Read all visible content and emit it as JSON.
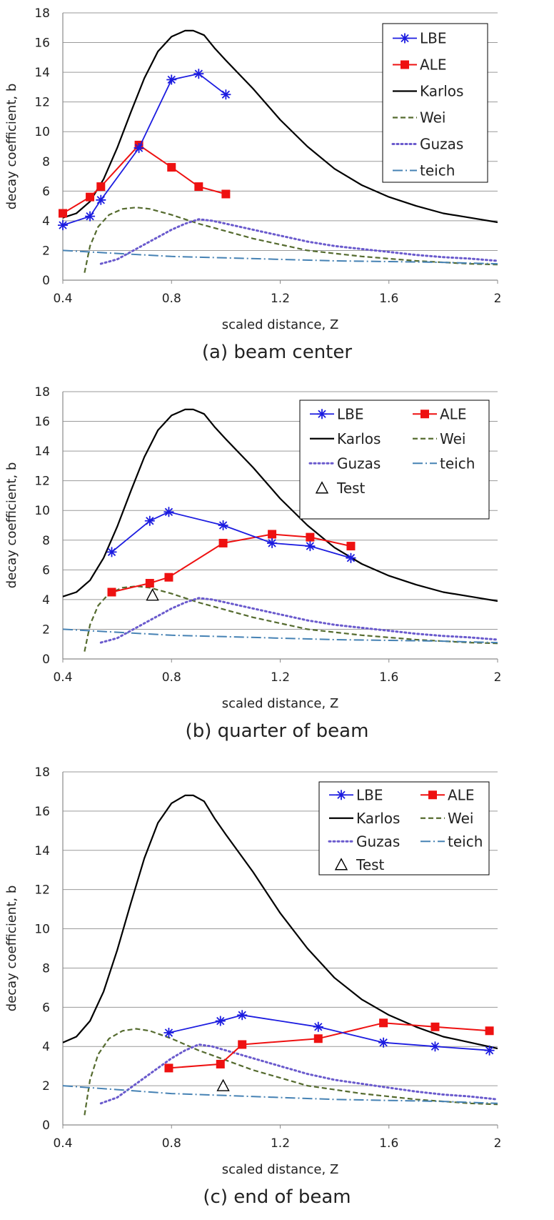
{
  "captions": [
    "(a) beam center",
    "(b) quarter of beam",
    "(c) end of beam"
  ],
  "colors": {
    "lbe": "#1c1ce0",
    "ale": "#ee1111",
    "karlos": "#000000",
    "wei": "#556b2f",
    "guzas": "#6a5acd",
    "teich": "#4682b4",
    "test": "#000000"
  },
  "chart_data": [
    {
      "type": "line",
      "title": "(a) beam center",
      "xlabel": "scaled distance, Z",
      "ylabel": "decay coefficient, b",
      "xlim": [
        0.4,
        2.0
      ],
      "ylim": [
        0,
        18
      ],
      "xticks": [
        0.4,
        0.8,
        1.2,
        1.6,
        2.0
      ],
      "xtick_labels": [
        "0.4",
        "0.8",
        "1.2",
        "1.6",
        "2"
      ],
      "yticks": [
        0,
        2,
        4,
        6,
        8,
        10,
        12,
        14,
        16,
        18
      ],
      "ytick_labels": [
        "0",
        "2",
        "4",
        "6",
        "8",
        "10",
        "12",
        "14",
        "16",
        "18"
      ],
      "legend": {
        "position": "top-right",
        "columns": 1,
        "entries": [
          "LBE",
          "ALE",
          "Karlos",
          "Wei",
          "Guzas",
          "teich"
        ]
      },
      "series": [
        {
          "name": "LBE",
          "style": "lbe",
          "x": [
            0.4,
            0.5,
            0.54,
            0.68,
            0.8,
            0.9,
            1.0
          ],
          "y": [
            3.7,
            4.3,
            5.4,
            8.9,
            13.5,
            13.9,
            12.5
          ]
        },
        {
          "name": "ALE",
          "style": "ale",
          "x": [
            0.4,
            0.5,
            0.54,
            0.68,
            0.8,
            0.9,
            1.0
          ],
          "y": [
            4.5,
            5.6,
            6.3,
            9.1,
            7.6,
            6.3,
            5.8
          ]
        },
        {
          "name": "Karlos",
          "style": "karlos",
          "x": [
            0.4,
            0.45,
            0.5,
            0.55,
            0.6,
            0.65,
            0.7,
            0.75,
            0.8,
            0.85,
            0.88,
            0.92,
            0.96,
            1.0,
            1.1,
            1.2,
            1.3,
            1.4,
            1.5,
            1.6,
            1.7,
            1.8,
            1.9,
            2.0
          ],
          "y": [
            4.2,
            4.5,
            5.3,
            6.8,
            8.9,
            11.3,
            13.6,
            15.4,
            16.4,
            16.8,
            16.8,
            16.5,
            15.6,
            14.8,
            12.9,
            10.8,
            9.0,
            7.5,
            6.4,
            5.6,
            5.0,
            4.5,
            4.2,
            3.9
          ]
        },
        {
          "name": "Wei",
          "style": "wei",
          "x": [
            0.48,
            0.5,
            0.53,
            0.57,
            0.62,
            0.67,
            0.72,
            0.8,
            0.9,
            1.0,
            1.1,
            1.2,
            1.3,
            1.4,
            1.5,
            1.6,
            1.7,
            1.8,
            1.9,
            2.0
          ],
          "y": [
            0.5,
            2.3,
            3.6,
            4.4,
            4.8,
            4.9,
            4.8,
            4.4,
            3.8,
            3.3,
            2.8,
            2.4,
            2.0,
            1.8,
            1.6,
            1.45,
            1.3,
            1.2,
            1.1,
            1.05
          ]
        },
        {
          "name": "Guzas",
          "style": "guzas",
          "x": [
            0.54,
            0.6,
            0.7,
            0.8,
            0.85,
            0.9,
            0.95,
            1.0,
            1.1,
            1.2,
            1.3,
            1.4,
            1.5,
            1.6,
            1.7,
            1.8,
            1.9,
            2.0
          ],
          "y": [
            1.1,
            1.4,
            2.4,
            3.4,
            3.8,
            4.1,
            4.0,
            3.8,
            3.4,
            3.0,
            2.6,
            2.3,
            2.1,
            1.9,
            1.7,
            1.55,
            1.45,
            1.3
          ]
        },
        {
          "name": "teich",
          "style": "teich",
          "x": [
            0.4,
            0.6,
            0.8,
            1.0,
            1.2,
            1.4,
            1.6,
            1.8,
            2.0
          ],
          "y": [
            2.0,
            1.8,
            1.6,
            1.5,
            1.4,
            1.3,
            1.25,
            1.2,
            1.1
          ]
        }
      ]
    },
    {
      "type": "line",
      "title": "(b) quarter of beam",
      "xlabel": "scaled distance, Z",
      "ylabel": "decay coefficient, b",
      "xlim": [
        0.4,
        2.0
      ],
      "ylim": [
        0,
        18
      ],
      "xticks": [
        0.4,
        0.8,
        1.2,
        1.6,
        2.0
      ],
      "xtick_labels": [
        "0.4",
        "0.8",
        "1.2",
        "1.6",
        "2"
      ],
      "yticks": [
        0,
        2,
        4,
        6,
        8,
        10,
        12,
        14,
        16,
        18
      ],
      "ytick_labels": [
        "0",
        "2",
        "4",
        "6",
        "8",
        "10",
        "12",
        "14",
        "16",
        "18"
      ],
      "legend": {
        "position": "top-right",
        "columns": 2,
        "entries": [
          "LBE",
          "ALE",
          "Karlos",
          "Wei",
          "Guzas",
          "teich",
          "Test"
        ]
      },
      "series": [
        {
          "name": "LBE",
          "style": "lbe",
          "x": [
            0.58,
            0.72,
            0.79,
            0.99,
            1.17,
            1.31,
            1.46
          ],
          "y": [
            7.2,
            9.3,
            9.9,
            9.0,
            7.8,
            7.6,
            6.8
          ]
        },
        {
          "name": "ALE",
          "style": "ale",
          "x": [
            0.58,
            0.72,
            0.79,
            0.99,
            1.17,
            1.31,
            1.46
          ],
          "y": [
            4.5,
            5.1,
            5.5,
            7.8,
            8.4,
            8.2,
            7.6
          ]
        },
        {
          "name": "Karlos",
          "style": "karlos",
          "x": [
            0.4,
            0.45,
            0.5,
            0.55,
            0.6,
            0.65,
            0.7,
            0.75,
            0.8,
            0.85,
            0.88,
            0.92,
            0.96,
            1.0,
            1.1,
            1.2,
            1.3,
            1.4,
            1.5,
            1.6,
            1.7,
            1.8,
            1.9,
            2.0
          ],
          "y": [
            4.2,
            4.5,
            5.3,
            6.8,
            8.9,
            11.3,
            13.6,
            15.4,
            16.4,
            16.8,
            16.8,
            16.5,
            15.6,
            14.8,
            12.9,
            10.8,
            9.0,
            7.5,
            6.4,
            5.6,
            5.0,
            4.5,
            4.2,
            3.9
          ]
        },
        {
          "name": "Wei",
          "style": "wei",
          "x": [
            0.48,
            0.5,
            0.53,
            0.57,
            0.62,
            0.67,
            0.72,
            0.8,
            0.9,
            1.0,
            1.1,
            1.2,
            1.3,
            1.4,
            1.5,
            1.6,
            1.7,
            1.8,
            1.9,
            2.0
          ],
          "y": [
            0.5,
            2.3,
            3.6,
            4.4,
            4.8,
            4.9,
            4.8,
            4.4,
            3.8,
            3.3,
            2.8,
            2.4,
            2.0,
            1.8,
            1.6,
            1.45,
            1.3,
            1.2,
            1.1,
            1.05
          ]
        },
        {
          "name": "Guzas",
          "style": "guzas",
          "x": [
            0.54,
            0.6,
            0.7,
            0.8,
            0.85,
            0.9,
            0.95,
            1.0,
            1.1,
            1.2,
            1.3,
            1.4,
            1.5,
            1.6,
            1.7,
            1.8,
            1.9,
            2.0
          ],
          "y": [
            1.1,
            1.4,
            2.4,
            3.4,
            3.8,
            4.1,
            4.0,
            3.8,
            3.4,
            3.0,
            2.6,
            2.3,
            2.1,
            1.9,
            1.7,
            1.55,
            1.45,
            1.3
          ]
        },
        {
          "name": "teich",
          "style": "teich",
          "x": [
            0.4,
            0.6,
            0.8,
            1.0,
            1.2,
            1.4,
            1.6,
            1.8,
            2.0
          ],
          "y": [
            2.0,
            1.8,
            1.6,
            1.5,
            1.4,
            1.3,
            1.25,
            1.2,
            1.1
          ]
        },
        {
          "name": "Test",
          "style": "test",
          "x": [
            0.73
          ],
          "y": [
            4.3
          ]
        }
      ]
    },
    {
      "type": "line",
      "title": "(c) end of beam",
      "xlabel": "scaled distance, Z",
      "ylabel": "decay coefficient, b",
      "xlim": [
        0.4,
        2.0
      ],
      "ylim": [
        0,
        18
      ],
      "xticks": [
        0.4,
        0.8,
        1.2,
        1.6,
        2.0
      ],
      "xtick_labels": [
        "0.4",
        "0.8",
        "1.2",
        "1.6",
        "2"
      ],
      "yticks": [
        0,
        2,
        4,
        6,
        8,
        10,
        12,
        14,
        16,
        18
      ],
      "ytick_labels": [
        "0",
        "2",
        "4",
        "6",
        "8",
        "10",
        "12",
        "14",
        "16",
        "18"
      ],
      "legend": {
        "position": "top-right",
        "columns": 2,
        "entries": [
          "LBE",
          "ALE",
          "Karlos",
          "Wei",
          "Guzas",
          "teich",
          "Test"
        ]
      },
      "series": [
        {
          "name": "LBE",
          "style": "lbe",
          "x": [
            0.79,
            0.98,
            1.06,
            1.34,
            1.58,
            1.77,
            1.97
          ],
          "y": [
            4.7,
            5.3,
            5.6,
            5.0,
            4.2,
            4.0,
            3.8
          ]
        },
        {
          "name": "ALE",
          "style": "ale",
          "x": [
            0.79,
            0.98,
            1.06,
            1.34,
            1.58,
            1.77,
            1.97
          ],
          "y": [
            2.9,
            3.1,
            4.1,
            4.4,
            5.2,
            5.0,
            4.8
          ]
        },
        {
          "name": "Karlos",
          "style": "karlos",
          "x": [
            0.4,
            0.45,
            0.5,
            0.55,
            0.6,
            0.65,
            0.7,
            0.75,
            0.8,
            0.85,
            0.88,
            0.92,
            0.96,
            1.0,
            1.1,
            1.2,
            1.3,
            1.4,
            1.5,
            1.6,
            1.7,
            1.8,
            1.9,
            2.0
          ],
          "y": [
            4.2,
            4.5,
            5.3,
            6.8,
            8.9,
            11.3,
            13.6,
            15.4,
            16.4,
            16.8,
            16.8,
            16.5,
            15.6,
            14.8,
            12.9,
            10.8,
            9.0,
            7.5,
            6.4,
            5.6,
            5.0,
            4.5,
            4.2,
            3.9
          ]
        },
        {
          "name": "Wei",
          "style": "wei",
          "x": [
            0.48,
            0.5,
            0.53,
            0.57,
            0.62,
            0.67,
            0.72,
            0.8,
            0.9,
            1.0,
            1.1,
            1.2,
            1.3,
            1.4,
            1.5,
            1.6,
            1.7,
            1.8,
            1.9,
            2.0
          ],
          "y": [
            0.5,
            2.3,
            3.6,
            4.4,
            4.8,
            4.9,
            4.8,
            4.4,
            3.8,
            3.3,
            2.8,
            2.4,
            2.0,
            1.8,
            1.6,
            1.45,
            1.3,
            1.2,
            1.1,
            1.05
          ]
        },
        {
          "name": "Guzas",
          "style": "guzas",
          "x": [
            0.54,
            0.6,
            0.7,
            0.8,
            0.85,
            0.9,
            0.95,
            1.0,
            1.1,
            1.2,
            1.3,
            1.4,
            1.5,
            1.6,
            1.7,
            1.8,
            1.9,
            2.0
          ],
          "y": [
            1.1,
            1.4,
            2.4,
            3.4,
            3.8,
            4.1,
            4.0,
            3.8,
            3.4,
            3.0,
            2.6,
            2.3,
            2.1,
            1.9,
            1.7,
            1.55,
            1.45,
            1.3
          ]
        },
        {
          "name": "teich",
          "style": "teich",
          "x": [
            0.4,
            0.6,
            0.8,
            1.0,
            1.2,
            1.4,
            1.6,
            1.8,
            2.0
          ],
          "y": [
            2.0,
            1.8,
            1.6,
            1.5,
            1.4,
            1.3,
            1.25,
            1.2,
            1.1
          ]
        },
        {
          "name": "Test",
          "style": "test",
          "x": [
            0.99
          ],
          "y": [
            2.0
          ]
        }
      ]
    }
  ]
}
